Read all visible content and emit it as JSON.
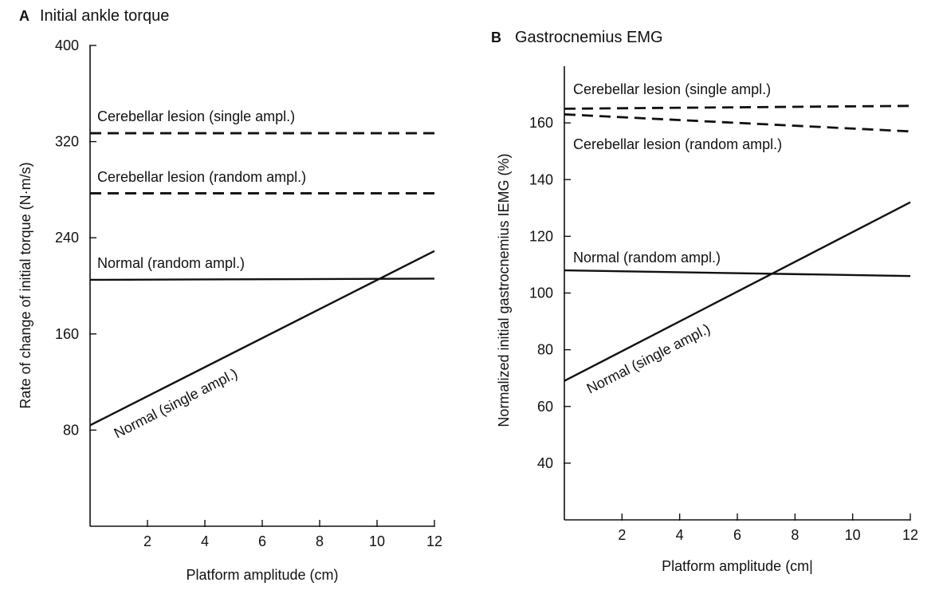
{
  "chart_data": [
    {
      "panel_letter": "A",
      "type": "line",
      "title": "Initial ankle torque",
      "xlabel": "Platform amplitude (cm)",
      "ylabel": "Rate of change of initial torque (N·m/s)",
      "xlim": [
        0,
        12
      ],
      "ylim": [
        0,
        400
      ],
      "xticks": [
        2,
        4,
        6,
        8,
        10,
        12
      ],
      "yticks": [
        80,
        160,
        240,
        320,
        400
      ],
      "grid": false,
      "legend": "inline labels",
      "series": [
        {
          "name": "Cerebellar lesion (single ampl.)",
          "style": "dashed",
          "x": [
            0,
            12
          ],
          "y": [
            327,
            327
          ]
        },
        {
          "name": "Cerebellar lesion (random ampl.)",
          "style": "dashed",
          "x": [
            0,
            12
          ],
          "y": [
            277,
            277
          ]
        },
        {
          "name": "Normal (random ampl.)",
          "style": "solid",
          "x": [
            0,
            12
          ],
          "y": [
            205,
            206
          ]
        },
        {
          "name": "Normal (single ampl.)",
          "style": "solid",
          "x": [
            0,
            12
          ],
          "y": [
            84,
            229
          ]
        }
      ]
    },
    {
      "panel_letter": "B",
      "type": "line",
      "title": "Gastrocnemius EMG",
      "xlabel": "Platform amplitude (cm|",
      "ylabel": "Normalized initial gastrocnemius IEMG (%)",
      "xlim": [
        0,
        12
      ],
      "ylim": [
        20,
        180
      ],
      "xticks": [
        2,
        4,
        6,
        8,
        10,
        12
      ],
      "yticks": [
        40,
        60,
        80,
        100,
        120,
        140,
        160
      ],
      "grid": false,
      "legend": "inline labels",
      "series": [
        {
          "name": "Cerebellar lesion (single ampl.)",
          "style": "dashed",
          "x": [
            0,
            12
          ],
          "y": [
            165,
            166
          ]
        },
        {
          "name": "Cerebellar lesion (random ampl.)",
          "style": "dashed",
          "x": [
            0,
            12
          ],
          "y": [
            163,
            157
          ]
        },
        {
          "name": "Normal (random ampl.)",
          "style": "solid",
          "x": [
            0,
            12
          ],
          "y": [
            108,
            106
          ]
        },
        {
          "name": "Normal (single ampl.)",
          "style": "solid",
          "x": [
            0,
            12
          ],
          "y": [
            69,
            132
          ]
        }
      ]
    }
  ]
}
